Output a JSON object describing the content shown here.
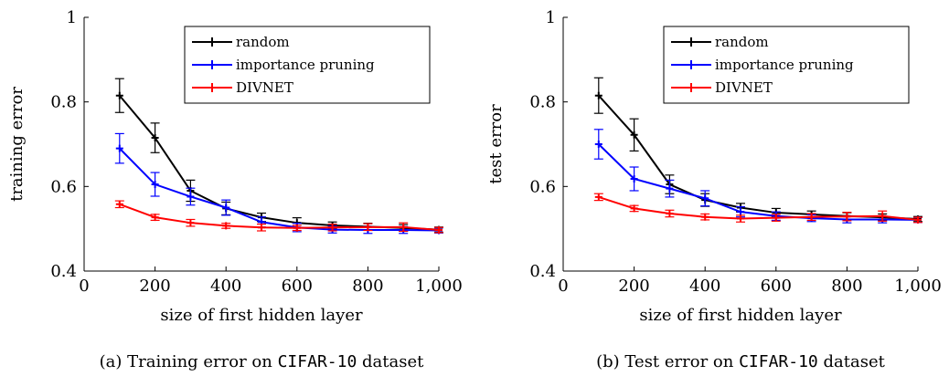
{
  "chart_data": [
    {
      "type": "line",
      "caption_prefix": "(a) Training error on ",
      "caption_dataset": "CIFAR-10",
      "caption_suffix": " dataset",
      "xlabel": "size of first hidden layer",
      "ylabel": "training error",
      "xlim": [
        0,
        1000
      ],
      "ylim": [
        0.4,
        1
      ],
      "xticks": [
        0,
        200,
        400,
        600,
        800,
        1000
      ],
      "xtick_labels": [
        "0",
        "200",
        "400",
        "600",
        "800",
        "1,000"
      ],
      "yticks": [
        0.4,
        0.6,
        0.8,
        1
      ],
      "ytick_labels": [
        "0.4",
        "0.6",
        "0.8",
        "1"
      ],
      "legend_position": "top-right",
      "x": [
        100,
        200,
        300,
        400,
        500,
        600,
        700,
        800,
        900,
        1000
      ],
      "series": [
        {
          "name": "random",
          "color": "#000000",
          "values": [
            0.815,
            0.715,
            0.59,
            0.548,
            0.527,
            0.514,
            0.508,
            0.505,
            0.502,
            0.498
          ],
          "errors": [
            0.04,
            0.035,
            0.025,
            0.015,
            0.01,
            0.012,
            0.008,
            0.008,
            0.008,
            0.006
          ]
        },
        {
          "name": "importance pruning",
          "color": "#0000ff",
          "values": [
            0.69,
            0.605,
            0.576,
            0.55,
            0.516,
            0.503,
            0.498,
            0.497,
            0.497,
            0.496
          ],
          "errors": [
            0.035,
            0.028,
            0.02,
            0.018,
            0.012,
            0.01,
            0.008,
            0.008,
            0.008,
            0.006
          ]
        },
        {
          "name": "DIVNET",
          "color": "#ff0000",
          "values": [
            0.558,
            0.527,
            0.514,
            0.507,
            0.503,
            0.502,
            0.503,
            0.504,
            0.504,
            0.497
          ],
          "errors": [
            0.008,
            0.007,
            0.008,
            0.006,
            0.008,
            0.006,
            0.008,
            0.008,
            0.01,
            0.006
          ]
        }
      ]
    },
    {
      "type": "line",
      "caption_prefix": "(b) Test error on ",
      "caption_dataset": "CIFAR-10",
      "caption_suffix": " dataset",
      "xlabel": "size of first hidden layer",
      "ylabel": "test error",
      "xlim": [
        0,
        1000
      ],
      "ylim": [
        0.4,
        1
      ],
      "xticks": [
        0,
        200,
        400,
        600,
        800,
        1000
      ],
      "xtick_labels": [
        "0",
        "200",
        "400",
        "600",
        "800",
        "1,000"
      ],
      "yticks": [
        0.4,
        0.6,
        0.8,
        1
      ],
      "ytick_labels": [
        "0.4",
        "0.6",
        "0.8",
        "1"
      ],
      "legend_position": "top-right",
      "x": [
        100,
        200,
        300,
        400,
        500,
        600,
        700,
        800,
        900,
        1000
      ],
      "series": [
        {
          "name": "random",
          "color": "#000000",
          "values": [
            0.815,
            0.722,
            0.605,
            0.568,
            0.55,
            0.538,
            0.534,
            0.53,
            0.527,
            0.523
          ],
          "errors": [
            0.042,
            0.038,
            0.022,
            0.015,
            0.01,
            0.01,
            0.008,
            0.008,
            0.008,
            0.006
          ]
        },
        {
          "name": "importance pruning",
          "color": "#0000ff",
          "values": [
            0.7,
            0.618,
            0.595,
            0.572,
            0.54,
            0.53,
            0.525,
            0.522,
            0.522,
            0.521
          ],
          "errors": [
            0.035,
            0.028,
            0.02,
            0.018,
            0.012,
            0.01,
            0.008,
            0.008,
            0.008,
            0.006
          ]
        },
        {
          "name": "DIVNET",
          "color": "#ff0000",
          "values": [
            0.575,
            0.548,
            0.536,
            0.528,
            0.524,
            0.526,
            0.528,
            0.529,
            0.53,
            0.521
          ],
          "errors": [
            0.008,
            0.007,
            0.008,
            0.007,
            0.008,
            0.008,
            0.008,
            0.01,
            0.012,
            0.006
          ]
        }
      ]
    }
  ]
}
